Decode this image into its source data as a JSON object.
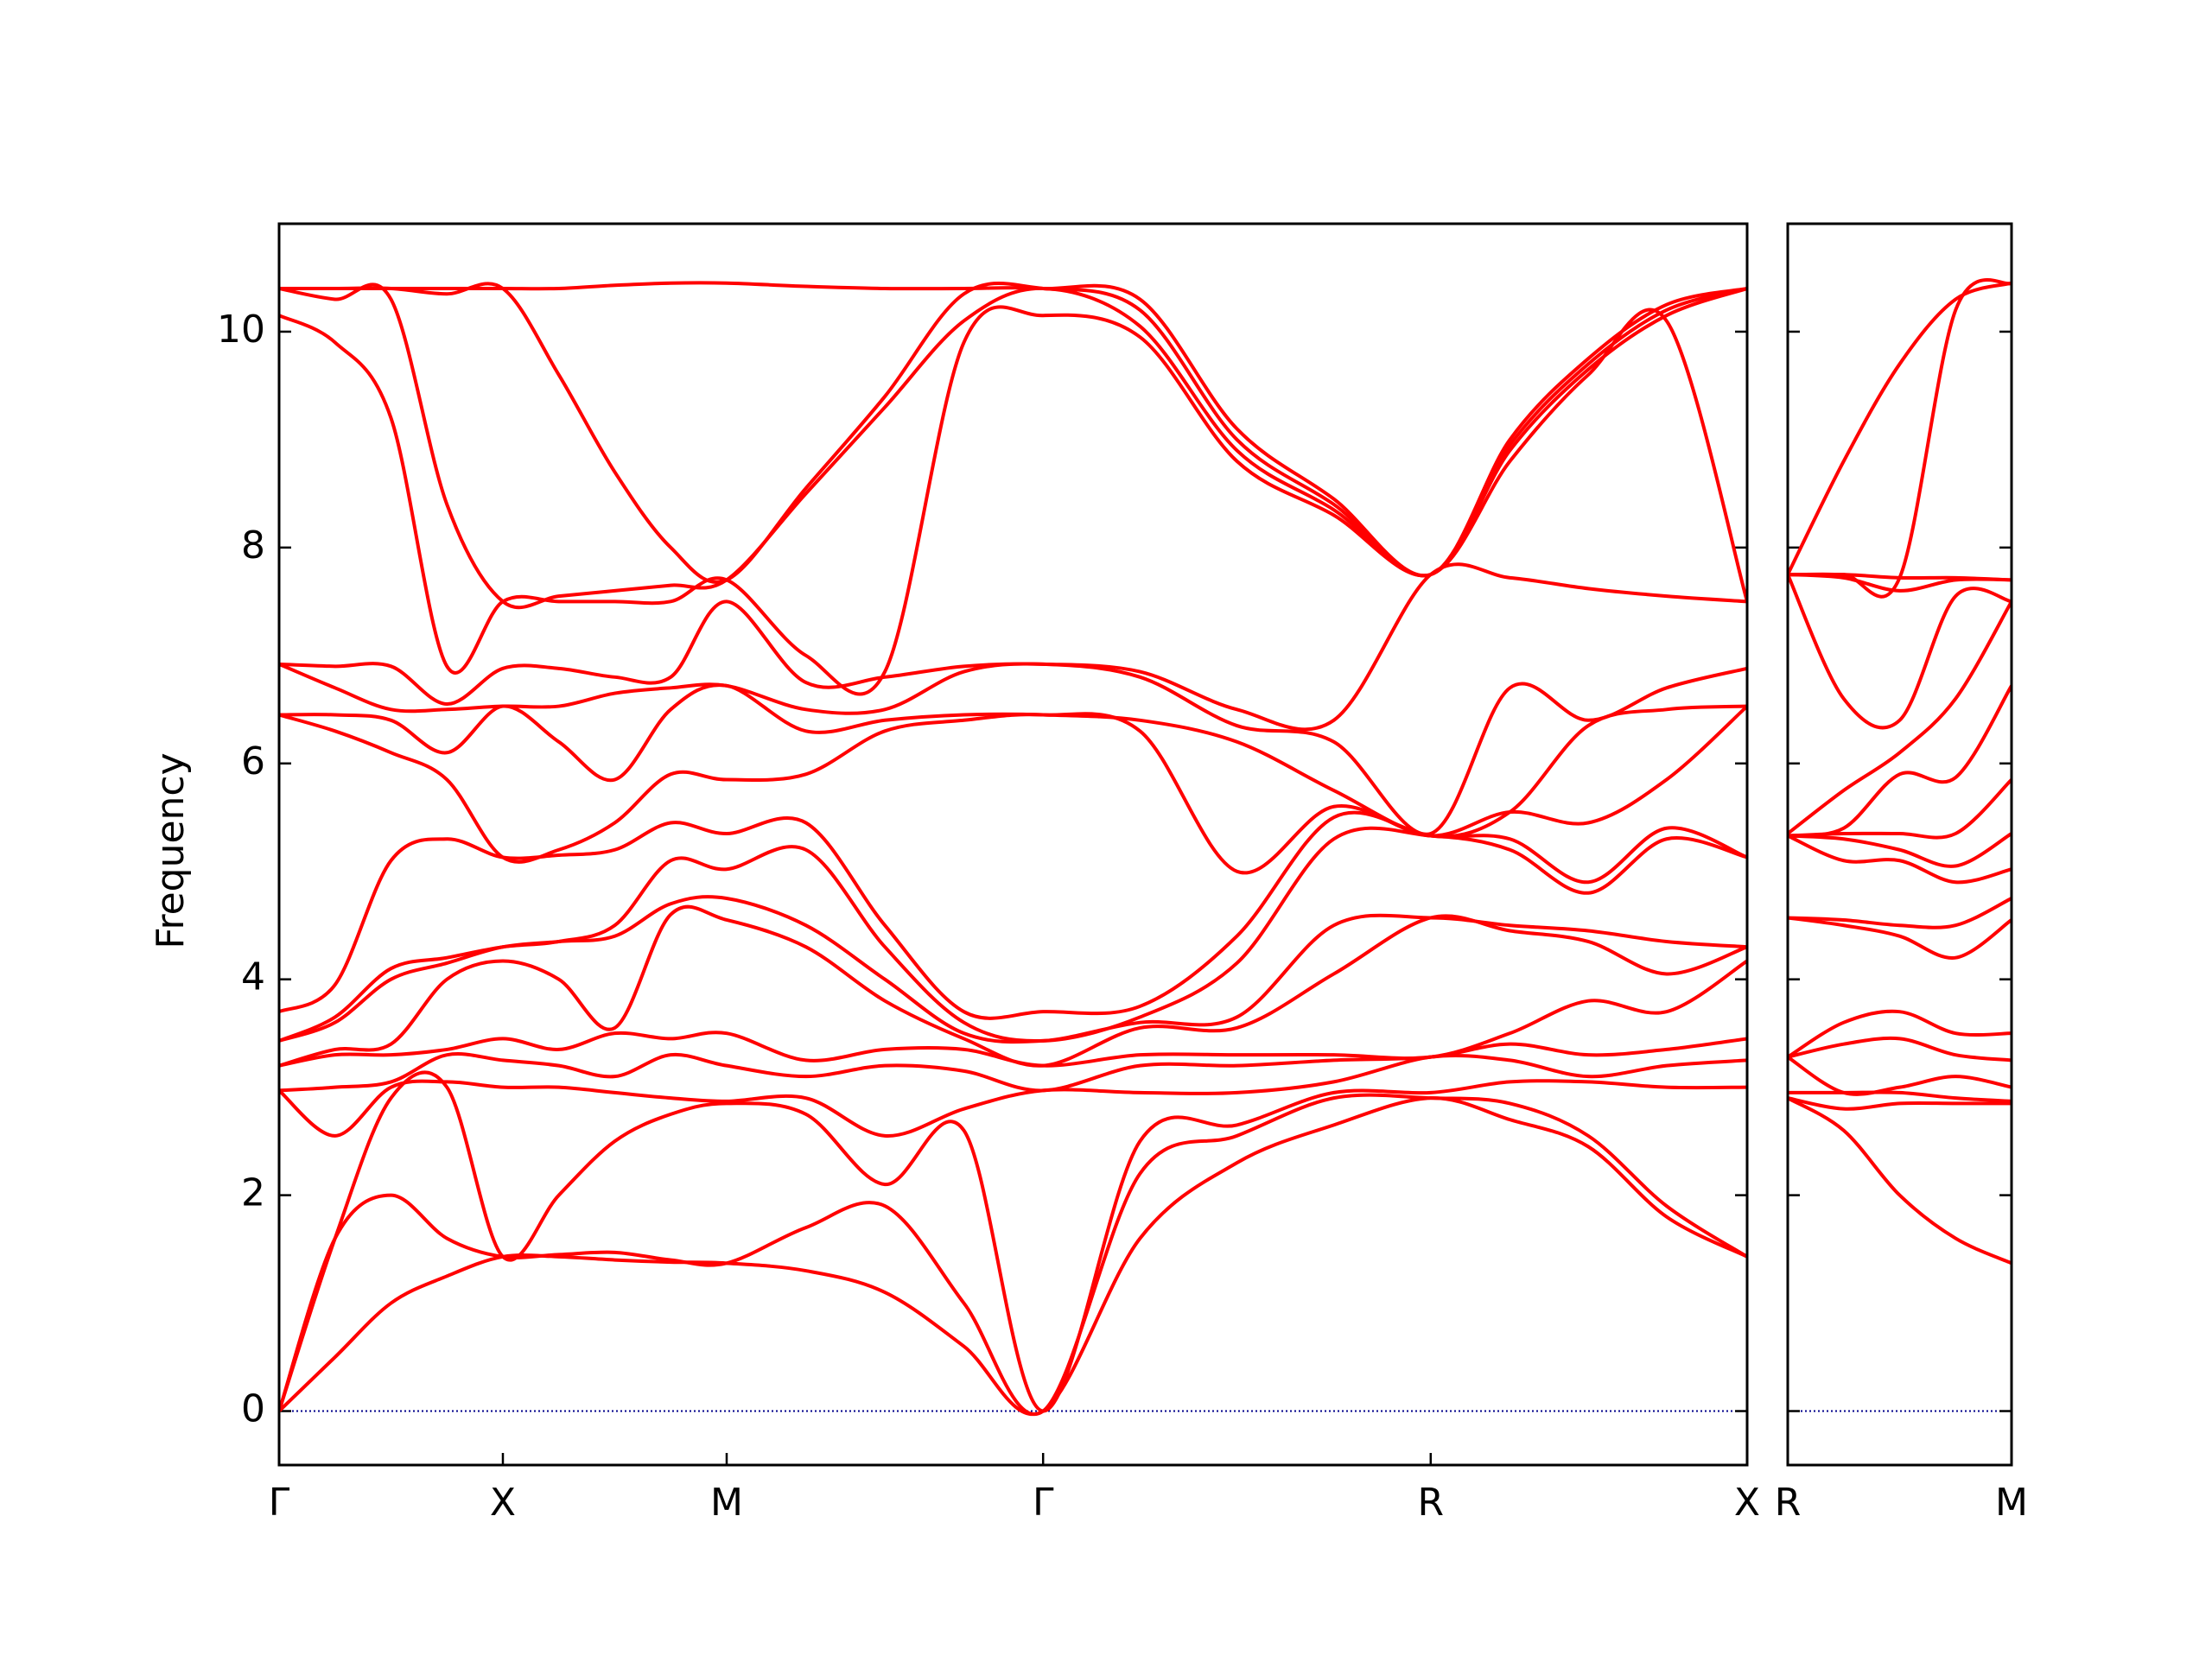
{
  "chart_data": [
    {
      "type": "line",
      "ylabel": "Frequency",
      "color": "#ff0000",
      "zero_line_color": "#00008b",
      "xlim": [
        0,
        6.56
      ],
      "ylim": [
        -0.5,
        11
      ],
      "yticks": [
        0,
        2,
        4,
        6,
        8,
        10
      ],
      "xticks": [
        {
          "value": 0,
          "label": "Γ"
        },
        {
          "value": 1,
          "label": "X"
        },
        {
          "value": 2,
          "label": "M"
        },
        {
          "value": 3.414,
          "label": "Γ"
        },
        {
          "value": 5.146,
          "label": "R"
        },
        {
          "value": 6.56,
          "label": "X"
        }
      ],
      "x": [
        0,
        0.25,
        0.5,
        0.75,
        1,
        1.25,
        1.5,
        1.75,
        2,
        2.354,
        2.707,
        3.06,
        3.414,
        3.847,
        4.28,
        4.713,
        5.146,
        5.5,
        5.85,
        6.2,
        6.56
      ],
      "series": [
        {
          "values": [
            0,
            0.5,
            1.0,
            1.25,
            1.43,
            1.43,
            1.4,
            1.38,
            1.37,
            1.3,
            1.1,
            0.6,
            0,
            1.6,
            2.3,
            2.65,
            2.9,
            2.7,
            2.45,
            1.8,
            1.43
          ]
        },
        {
          "values": [
            0,
            1.6,
            2.0,
            1.6,
            1.43,
            1.45,
            1.47,
            1.4,
            1.37,
            1.7,
            1.9,
            1.0,
            0,
            2.2,
            2.55,
            2.9,
            2.9,
            2.85,
            2.55,
            1.9,
            1.43
          ]
        },
        {
          "values": [
            0,
            1.6,
            2.9,
            3.0,
            1.43,
            2.0,
            2.5,
            2.75,
            2.85,
            2.75,
            2.1,
            2.6,
            0,
            2.5,
            2.65,
            2.95,
            2.95,
            3.05,
            3.05,
            3.0,
            3.0
          ]
        },
        {
          "values": [
            2.97,
            2.55,
            3.0,
            3.05,
            3.0,
            3.0,
            2.95,
            2.9,
            2.87,
            2.9,
            2.55,
            2.8,
            2.97,
            2.95,
            2.95,
            3.05,
            3.28,
            3.25,
            3.1,
            3.2,
            3.25
          ]
        },
        {
          "values": [
            2.97,
            3.0,
            3.05,
            3.3,
            3.25,
            3.2,
            3.1,
            3.3,
            3.2,
            3.1,
            3.2,
            3.15,
            2.97,
            3.2,
            3.2,
            3.25,
            3.28,
            3.4,
            3.3,
            3.35,
            3.45
          ]
        },
        {
          "values": [
            3.2,
            3.3,
            3.3,
            3.35,
            3.45,
            3.35,
            3.5,
            3.45,
            3.5,
            3.25,
            3.35,
            3.35,
            3.2,
            3.3,
            3.3,
            3.3,
            3.28,
            3.5,
            3.8,
            3.7,
            4.17
          ]
        },
        {
          "values": [
            3.2,
            3.35,
            3.4,
            4.0,
            4.17,
            4.0,
            3.55,
            4.6,
            4.55,
            4.3,
            3.8,
            3.45,
            3.2,
            3.55,
            3.55,
            4.05,
            4.57,
            4.45,
            4.35,
            4.05,
            4.3
          ]
        },
        {
          "values": [
            3.43,
            3.6,
            4.0,
            4.15,
            4.3,
            4.35,
            4.4,
            4.7,
            4.75,
            4.5,
            4.0,
            3.5,
            3.43,
            3.6,
            3.65,
            4.5,
            4.57,
            4.5,
            4.45,
            4.35,
            4.3
          ]
        },
        {
          "values": [
            3.43,
            3.65,
            4.1,
            4.2,
            4.3,
            4.35,
            4.5,
            5.1,
            5.02,
            5.2,
            4.3,
            3.6,
            3.43,
            3.65,
            4.15,
            5.3,
            5.33,
            5.2,
            4.8,
            5.3,
            5.13
          ]
        },
        {
          "values": [
            3.7,
            3.95,
            5.1,
            5.3,
            5.13,
            5.15,
            5.2,
            5.45,
            5.35,
            5.45,
            4.5,
            3.7,
            3.7,
            3.75,
            4.4,
            5.5,
            5.33,
            5.3,
            4.9,
            5.4,
            5.13
          ]
        },
        {
          "values": [
            6.45,
            6.3,
            6.1,
            5.85,
            5.13,
            5.2,
            5.45,
            5.9,
            5.85,
            5.9,
            6.3,
            6.4,
            6.45,
            6.3,
            5.0,
            5.6,
            5.33,
            5.55,
            5.45,
            5.85,
            6.53
          ]
        },
        {
          "values": [
            6.45,
            6.45,
            6.4,
            6.1,
            6.53,
            6.2,
            5.85,
            6.5,
            6.72,
            6.3,
            6.4,
            6.45,
            6.45,
            6.4,
            6.2,
            5.75,
            5.33,
            5.55,
            6.35,
            6.5,
            6.53
          ]
        },
        {
          "values": [
            6.92,
            6.7,
            6.5,
            6.5,
            6.53,
            6.53,
            6.65,
            6.7,
            6.72,
            6.5,
            6.5,
            6.85,
            6.92,
            6.8,
            6.35,
            6.2,
            5.35,
            6.7,
            6.4,
            6.7,
            6.88
          ]
        },
        {
          "values": [
            6.92,
            6.9,
            6.9,
            6.55,
            6.88,
            6.88,
            6.8,
            6.8,
            7.5,
            6.75,
            6.8,
            6.9,
            6.92,
            6.85,
            6.5,
            6.4,
            7.75,
            7.72,
            7.62,
            7.55,
            7.5
          ]
        },
        {
          "values": [
            10.15,
            9.9,
            9.2,
            6.9,
            7.5,
            7.5,
            7.5,
            7.5,
            7.7,
            7.0,
            6.85,
            9.9,
            10.15,
            9.95,
            8.8,
            8.3,
            7.75,
            8.8,
            9.6,
            10.1,
            7.5
          ]
        },
        {
          "values": [
            10.4,
            10.3,
            10.3,
            8.4,
            7.5,
            7.55,
            7.6,
            7.65,
            7.7,
            8.5,
            9.3,
            10.1,
            10.4,
            10.05,
            8.9,
            8.35,
            7.75,
            8.9,
            9.65,
            10.15,
            10.4
          ]
        },
        {
          "values": [
            10.4,
            10.4,
            10.4,
            10.35,
            10.4,
            9.6,
            8.7,
            8.0,
            7.7,
            8.55,
            9.4,
            10.35,
            10.4,
            10.2,
            9.0,
            8.4,
            7.75,
            8.95,
            9.7,
            10.2,
            10.4
          ]
        },
        {
          "values": [
            10.4,
            10.4,
            10.4,
            10.4,
            10.4,
            10.4,
            10.43,
            10.45,
            10.45,
            10.42,
            10.4,
            10.4,
            10.4,
            10.3,
            9.1,
            8.45,
            7.75,
            9.0,
            9.75,
            10.25,
            10.4
          ]
        }
      ]
    },
    {
      "type": "line",
      "color": "#ff0000",
      "zero_line_color": "#00008b",
      "xlim": [
        0,
        1
      ],
      "ylim": [
        -0.5,
        11
      ],
      "xticks": [
        {
          "value": 0,
          "label": "R"
        },
        {
          "value": 1,
          "label": "M"
        }
      ],
      "x": [
        0,
        0.25,
        0.5,
        0.75,
        1
      ],
      "series": [
        {
          "values": [
            2.9,
            2.6,
            2.0,
            1.6,
            1.37
          ]
        },
        {
          "values": [
            2.9,
            2.8,
            2.85,
            2.85,
            2.85
          ]
        },
        {
          "values": [
            2.95,
            2.95,
            2.95,
            2.9,
            2.87
          ]
        },
        {
          "values": [
            3.28,
            2.95,
            3.0,
            3.1,
            3.0
          ]
        },
        {
          "values": [
            3.28,
            3.4,
            3.45,
            3.3,
            3.25
          ]
        },
        {
          "values": [
            3.28,
            3.6,
            3.7,
            3.5,
            3.5
          ]
        },
        {
          "values": [
            4.57,
            4.5,
            4.4,
            4.2,
            4.55
          ]
        },
        {
          "values": [
            4.57,
            4.55,
            4.5,
            4.5,
            4.75
          ]
        },
        {
          "values": [
            5.33,
            5.1,
            5.1,
            4.9,
            5.02
          ]
        },
        {
          "values": [
            5.33,
            5.3,
            5.2,
            5.05,
            5.35
          ]
        },
        {
          "values": [
            5.33,
            5.35,
            5.35,
            5.35,
            5.85
          ]
        },
        {
          "values": [
            5.33,
            5.4,
            5.9,
            5.87,
            6.72
          ]
        },
        {
          "values": [
            5.35,
            5.75,
            6.1,
            6.6,
            7.5
          ]
        },
        {
          "values": [
            7.75,
            6.6,
            6.4,
            7.55,
            7.5
          ]
        },
        {
          "values": [
            7.75,
            7.72,
            7.6,
            7.7,
            7.7
          ]
        },
        {
          "values": [
            7.75,
            7.75,
            7.72,
            7.72,
            7.7
          ]
        },
        {
          "values": [
            7.75,
            7.75,
            7.72,
            10.2,
            10.45
          ]
        },
        {
          "values": [
            7.75,
            8.8,
            9.7,
            10.3,
            10.45
          ]
        }
      ]
    }
  ]
}
